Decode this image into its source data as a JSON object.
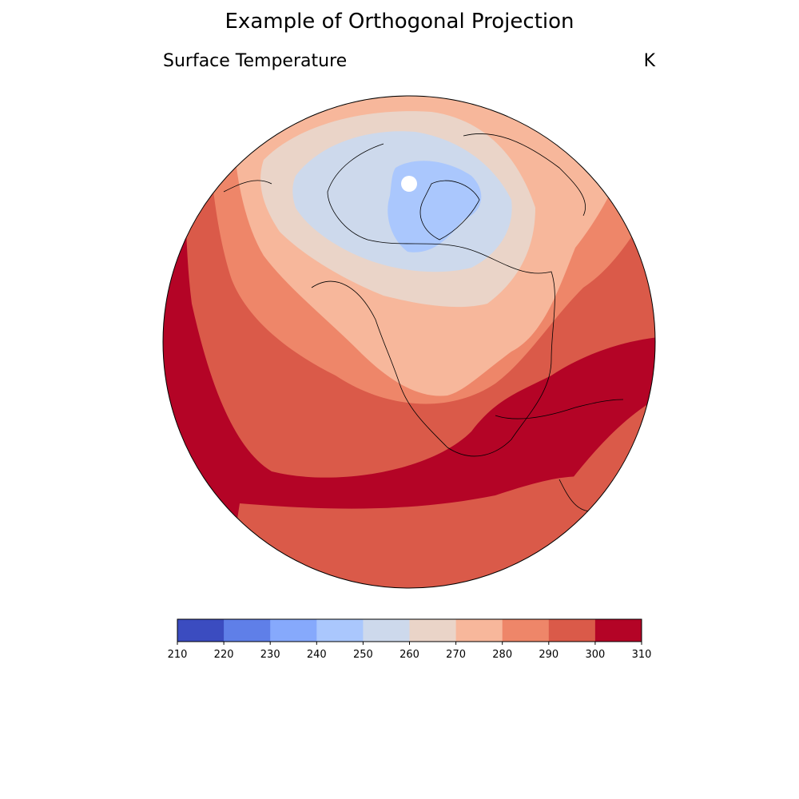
{
  "title": "Example of Orthogonal Projection",
  "subtitle_left": "Surface Temperature",
  "subtitle_right": "K",
  "colorbar": {
    "levels": [
      210,
      220,
      230,
      240,
      250,
      260,
      270,
      280,
      290,
      300,
      310
    ],
    "tick_labels": [
      "210",
      "220",
      "230",
      "240",
      "250",
      "260",
      "270",
      "280",
      "290",
      "300",
      "310"
    ],
    "colors": [
      "#3b4cc0",
      "#5f7fe8",
      "#86a9fc",
      "#aac7fd",
      "#cdd9ec",
      "#ead4c8",
      "#f7b79b",
      "#ee8669",
      "#da5a49",
      "#b40426"
    ]
  },
  "map": {
    "projection": "orthographic",
    "field": "surface temperature",
    "coastlines": true,
    "pole_marker_color": "#ffffff",
    "ocean_band_colors": {
      "warmest": "#b40426",
      "warm": "#da5a49",
      "mild": "#ee8669",
      "cool": "#f7b79b",
      "cold": "#ead4c8",
      "colder": "#cdd9ec",
      "coldest": "#aac7fd"
    }
  }
}
